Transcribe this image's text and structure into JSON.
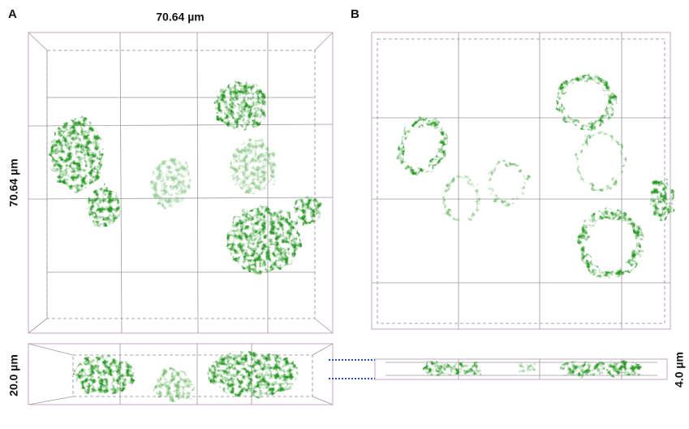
{
  "panel_a": {
    "label": "A",
    "width_label": "70.64 µm",
    "height_label": "70.64 µm",
    "depth_label": "20.0 µm"
  },
  "panel_b": {
    "label": "B",
    "depth_label": "4.0 µm"
  }
}
